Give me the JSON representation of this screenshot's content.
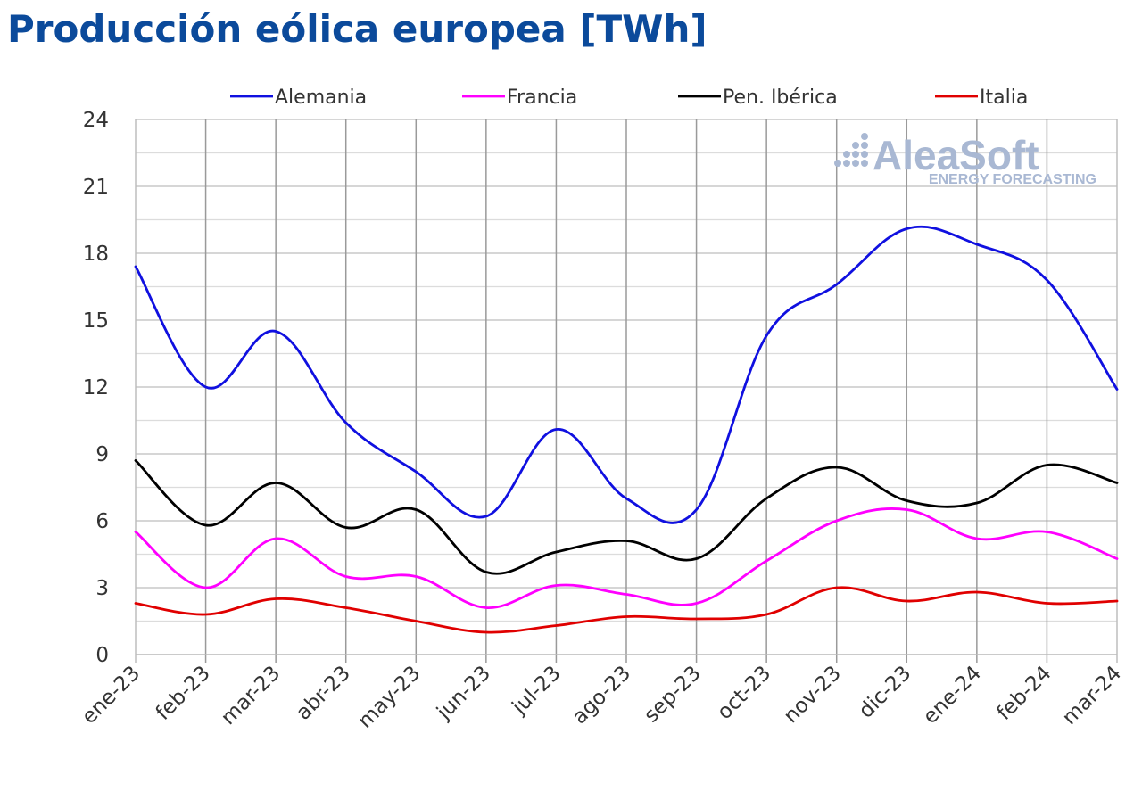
{
  "title": "Producción eólica europea [TWh]",
  "watermark": {
    "brand": "AleaSoft",
    "tagline": "ENERGY FORECASTING"
  },
  "chart_data": {
    "type": "line",
    "categories": [
      "ene-23",
      "feb-23",
      "mar-23",
      "abr-23",
      "may-23",
      "jun-23",
      "jul-23",
      "ago-23",
      "sep-23",
      "oct-23",
      "nov-23",
      "dic-23",
      "ene-24",
      "feb-24",
      "mar-24"
    ],
    "ylim": [
      0,
      24
    ],
    "yticks": [
      0,
      3,
      6,
      9,
      12,
      15,
      18,
      21,
      24
    ],
    "grid": true,
    "legend_position": "top",
    "series": [
      {
        "name": "Alemania",
        "color": "#1010e0",
        "values": [
          17.4,
          12.0,
          14.5,
          10.4,
          8.2,
          6.2,
          10.1,
          7.0,
          6.5,
          14.3,
          16.6,
          19.1,
          18.4,
          16.8,
          11.9
        ]
      },
      {
        "name": "Francia",
        "color": "#ff00ff",
        "values": [
          5.5,
          3.0,
          5.2,
          3.5,
          3.5,
          2.1,
          3.1,
          2.7,
          2.3,
          4.2,
          6.0,
          6.5,
          5.2,
          5.5,
          4.3
        ]
      },
      {
        "name": "Pen. Ibérica",
        "color": "#000000",
        "values": [
          8.7,
          5.8,
          7.7,
          5.7,
          6.5,
          3.7,
          4.6,
          5.1,
          4.3,
          7.0,
          8.4,
          6.9,
          6.8,
          8.5,
          7.7
        ]
      },
      {
        "name": "Italia",
        "color": "#e00000",
        "values": [
          2.3,
          1.8,
          2.5,
          2.1,
          1.5,
          1.0,
          1.3,
          1.7,
          1.6,
          1.8,
          3.0,
          2.4,
          2.8,
          2.3,
          2.4
        ]
      }
    ]
  }
}
